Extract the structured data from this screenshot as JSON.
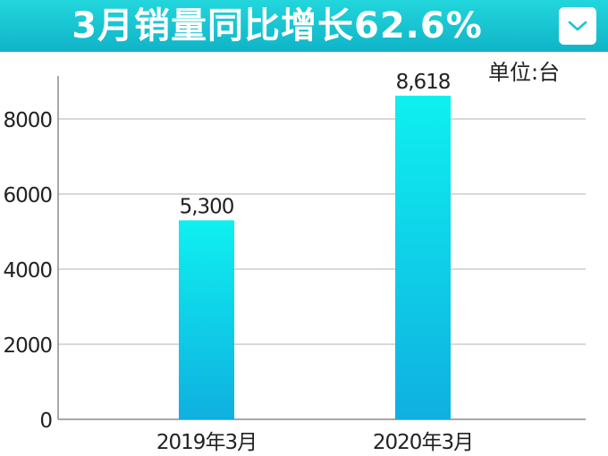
{
  "banner": {
    "title": "3月销量同比增长62.6%",
    "color": "#19c6d2",
    "dropdown_icon": "chevron-down-icon"
  },
  "unit_label": "单位:台",
  "chart_data": {
    "type": "bar",
    "categories": [
      "2019年3月",
      "2020年3月"
    ],
    "values": [
      5300,
      8618
    ],
    "data_labels": [
      "5,300",
      "8,618"
    ],
    "title": "3月销量同比增长62.6%",
    "unit": "单位:台",
    "xlabel": "",
    "ylabel": "",
    "ylim": [
      0,
      9000
    ],
    "yticks": [
      0,
      2000,
      4000,
      6000,
      8000
    ],
    "ytick_labels": [
      "0",
      "2000",
      "4000",
      "6000",
      "8000"
    ],
    "grid": true,
    "bar_color_top": "#0ff0f0",
    "bar_color_bottom": "#0fb0e0",
    "grid_color": "#b3b3b3"
  }
}
